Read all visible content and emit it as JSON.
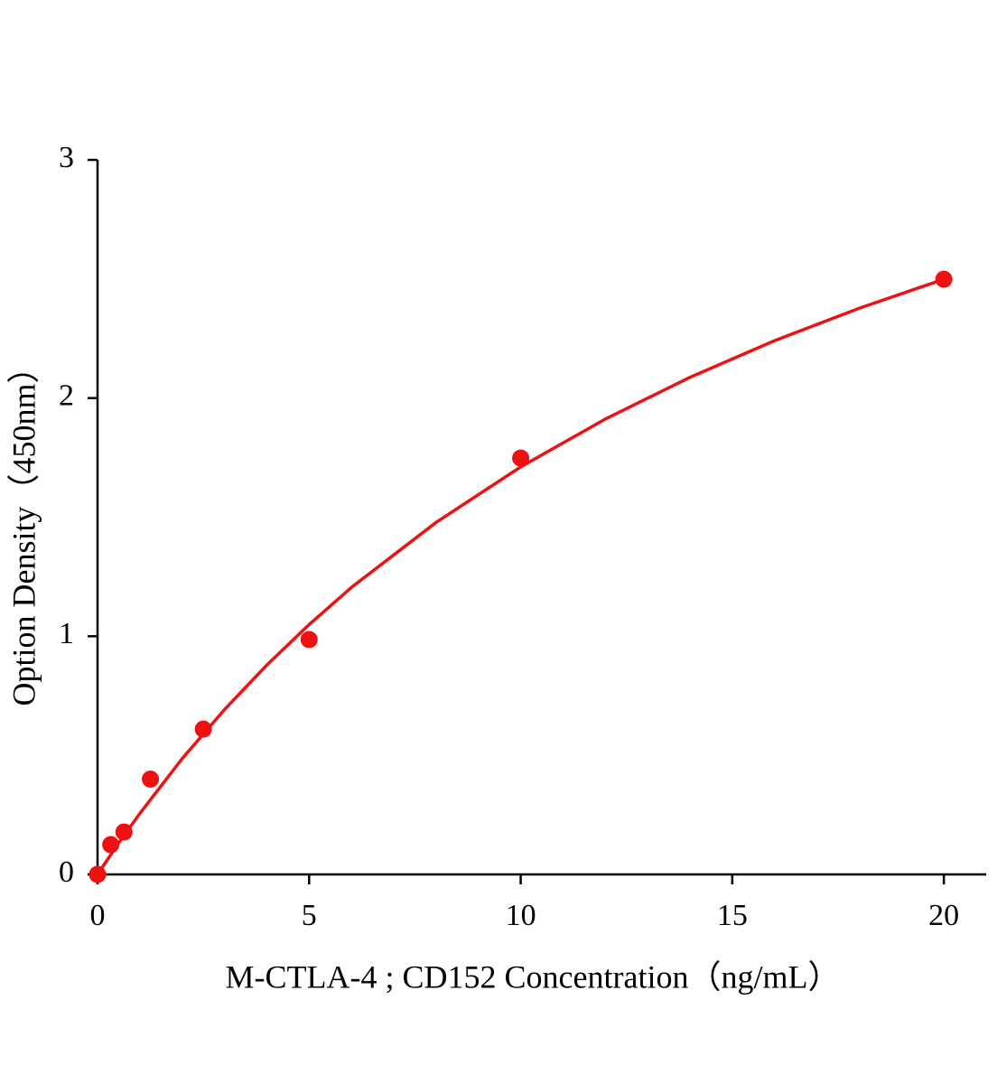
{
  "chart_data": {
    "type": "scatter",
    "xlabel": "M-CTLA-4 ; CD152 Concentration（ng/mL）",
    "ylabel": "Option Density（450nm）",
    "xlim": [
      0,
      21
    ],
    "ylim": [
      0,
      3
    ],
    "xticks": [
      0,
      5,
      10,
      15,
      20
    ],
    "yticks": [
      0,
      1,
      2,
      3
    ],
    "series": [
      {
        "type": "scatter",
        "color": "#ee1111",
        "x": [
          0,
          0.3125,
          0.625,
          1.25,
          2.5,
          5,
          10,
          20
        ],
        "values": [
          0,
          0.125,
          0.178,
          0.4,
          0.61,
          0.986,
          1.748,
          2.499
        ]
      },
      {
        "type": "line",
        "color": "#ee1111",
        "x": [
          0,
          0.5,
          1,
          2,
          3,
          4,
          5,
          6,
          8,
          10,
          12,
          14,
          16,
          18,
          20
        ],
        "values": [
          0,
          0.132,
          0.256,
          0.486,
          0.692,
          0.879,
          1.049,
          1.205,
          1.478,
          1.711,
          1.912,
          2.087,
          2.241,
          2.377,
          2.499
        ]
      }
    ]
  }
}
